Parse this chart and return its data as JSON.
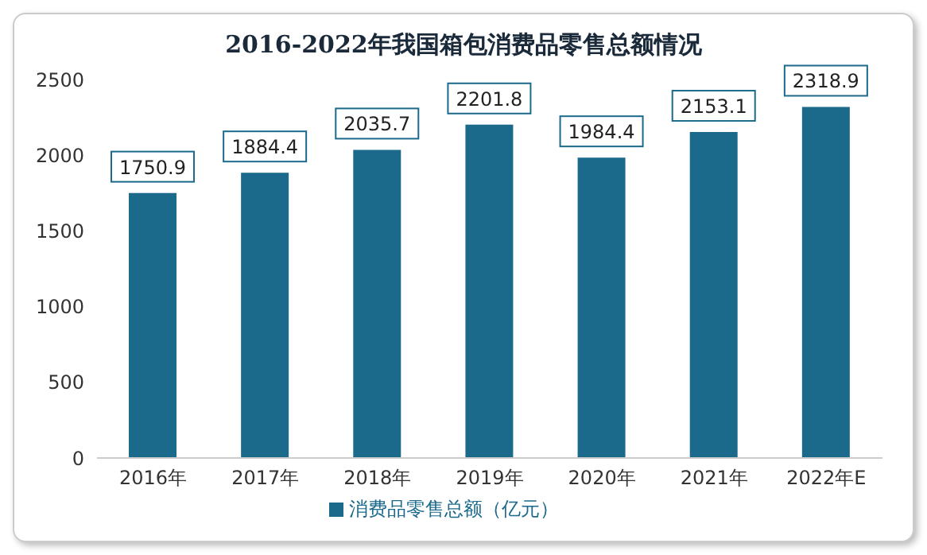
{
  "chart_data": {
    "type": "bar",
    "title": "2016-2022年我国箱包消费品零售总额情况",
    "categories": [
      "2016年",
      "2017年",
      "2018年",
      "2019年",
      "2020年",
      "2021年",
      "2022年E"
    ],
    "series": [
      {
        "name": "消费品零售总额（亿元）",
        "color": "#1b6a8c",
        "values": [
          1750.9,
          1884.4,
          2035.7,
          2201.8,
          1984.4,
          2153.1,
          2318.9
        ]
      }
    ],
    "ylim": [
      0,
      2500
    ],
    "yticks": [
      0,
      500,
      1000,
      1500,
      2000,
      2500
    ],
    "grid": false,
    "legend": "bottom",
    "data_labels": true
  }
}
